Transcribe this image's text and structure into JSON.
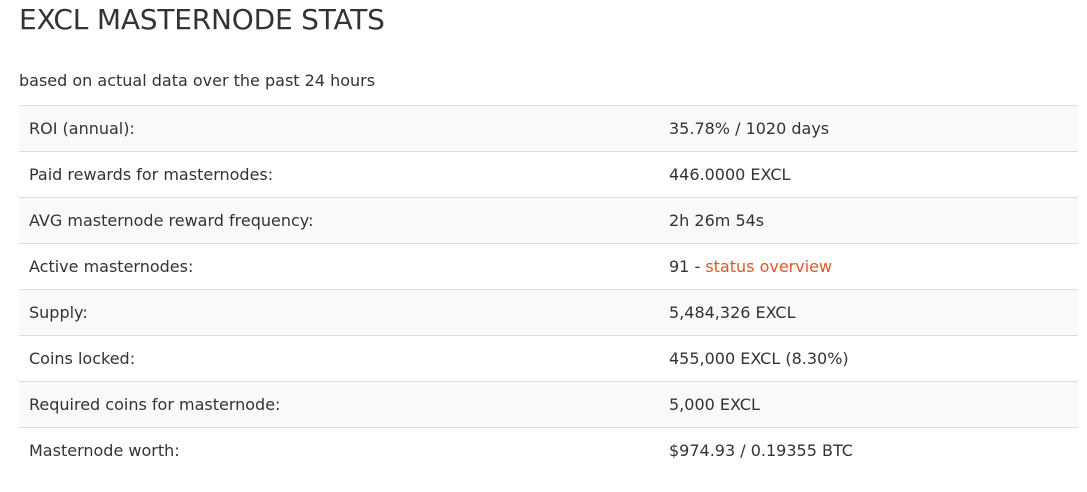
{
  "header": {
    "title": "EXCL MASTERNODE STATS",
    "subtitle": "based on actual data over the past 24 hours"
  },
  "stats": [
    {
      "label": "ROI (annual):",
      "value": "35.78% / 1020 days"
    },
    {
      "label": "Paid rewards for masternodes:",
      "value": "446.0000 EXCL"
    },
    {
      "label": "AVG masternode reward frequency:",
      "value": "2h 26m 54s"
    },
    {
      "label": "Active masternodes:",
      "value": "91 - ",
      "link": "status overview"
    },
    {
      "label": "Supply:",
      "value": "5,484,326 EXCL"
    },
    {
      "label": "Coins locked:",
      "value": "455,000 EXCL (8.30%)"
    },
    {
      "label": "Required coins for masternode:",
      "value": "5,000 EXCL"
    },
    {
      "label": "Masternode worth:",
      "value": "$974.93 / 0.19355 BTC"
    }
  ],
  "colors": {
    "text": "#333333",
    "link": "#e2562c",
    "row_stripe": "#f9f9f9",
    "border": "#dddddd"
  }
}
